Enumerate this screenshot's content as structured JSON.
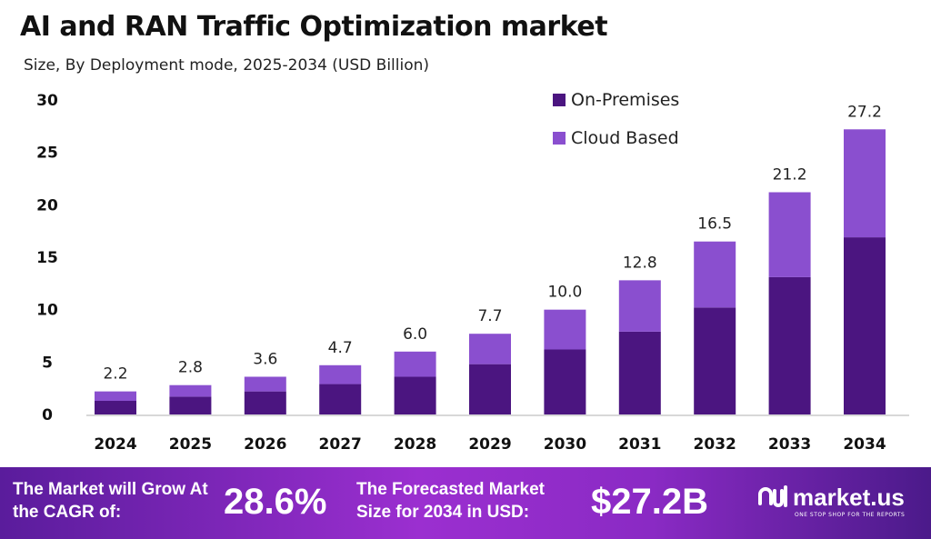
{
  "title": "AI and RAN Traffic Optimization market",
  "subtitle": "Size, By Deployment mode, 2025-2034 (USD Billion)",
  "chart_data": {
    "type": "bar",
    "stacked": true,
    "categories": [
      "2024",
      "2025",
      "2026",
      "2027",
      "2028",
      "2029",
      "2030",
      "2031",
      "2032",
      "2033",
      "2034"
    ],
    "series": [
      {
        "name": "On-Premises",
        "color": "#4b1580",
        "values": [
          1.3,
          1.7,
          2.2,
          2.9,
          3.6,
          4.8,
          6.2,
          7.9,
          10.2,
          13.1,
          16.9
        ]
      },
      {
        "name": "Cloud Based",
        "color": "#8a4fcf",
        "values": [
          0.9,
          1.1,
          1.4,
          1.8,
          2.4,
          2.9,
          3.8,
          4.9,
          6.3,
          8.1,
          10.3
        ]
      }
    ],
    "totals": [
      "2.2",
      "2.8",
      "3.6",
      "4.7",
      "6.0",
      "7.7",
      "10.0",
      "12.8",
      "16.5",
      "21.2",
      "27.2"
    ],
    "yticks": [
      0,
      5,
      10,
      15,
      20,
      25,
      30
    ],
    "ylim": [
      0,
      30
    ],
    "grid": false,
    "legend": "top-right"
  },
  "footer": {
    "cagr_label": "The Market will Grow At the CAGR of:",
    "cagr_value": "28.6%",
    "forecast_label": "The Forecasted Market Size for 2034 in USD:",
    "forecast_value": "$27.2B",
    "brand": "market.us",
    "tagline": "ONE STOP SHOP FOR THE REPORTS"
  }
}
